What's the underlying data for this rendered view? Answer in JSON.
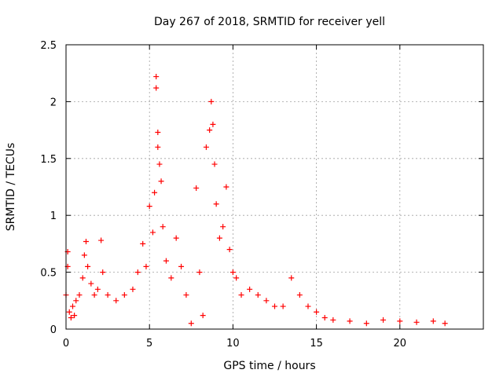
{
  "chart_data": {
    "type": "scatter",
    "title": "Day 267 of 2018, SRMTID for receiver yell",
    "xlabel": "GPS time / hours",
    "ylabel": "SRMTID / TECUs",
    "xlim": [
      0,
      25
    ],
    "ylim": [
      0,
      2.5
    ],
    "grid": true,
    "x_ticks": [
      0,
      5,
      10,
      15,
      20
    ],
    "x_tick_labels": [
      "0",
      "5",
      "10",
      "15",
      "20"
    ],
    "y_ticks": [
      0,
      0.5,
      1,
      1.5,
      2,
      2.5
    ],
    "y_tick_labels": [
      "0",
      "0.5",
      "1",
      "1.5",
      "2",
      "2.5"
    ],
    "marker": "+",
    "series": [
      {
        "name": "SRMTID",
        "color": "#ff0000",
        "sample_points": [
          [
            0.0,
            0.3
          ],
          [
            0.1,
            0.68
          ],
          [
            0.1,
            0.55
          ],
          [
            0.2,
            0.15
          ],
          [
            0.3,
            0.1
          ],
          [
            0.4,
            0.2
          ],
          [
            0.5,
            0.12
          ],
          [
            0.6,
            0.25
          ],
          [
            0.8,
            0.3
          ],
          [
            1.0,
            0.45
          ],
          [
            1.1,
            0.65
          ],
          [
            1.2,
            0.77
          ],
          [
            1.3,
            0.55
          ],
          [
            1.5,
            0.4
          ],
          [
            1.7,
            0.3
          ],
          [
            1.9,
            0.35
          ],
          [
            2.1,
            0.78
          ],
          [
            2.2,
            0.5
          ],
          [
            2.5,
            0.3
          ],
          [
            3.0,
            0.25
          ],
          [
            3.5,
            0.3
          ],
          [
            4.0,
            0.35
          ],
          [
            4.3,
            0.5
          ],
          [
            4.6,
            0.75
          ],
          [
            4.8,
            0.55
          ],
          [
            5.0,
            1.08
          ],
          [
            5.2,
            0.85
          ],
          [
            5.3,
            1.2
          ],
          [
            5.4,
            2.22
          ],
          [
            5.4,
            2.12
          ],
          [
            5.5,
            1.73
          ],
          [
            5.5,
            1.6
          ],
          [
            5.6,
            1.45
          ],
          [
            5.7,
            1.3
          ],
          [
            5.8,
            0.9
          ],
          [
            6.0,
            0.6
          ],
          [
            6.3,
            0.45
          ],
          [
            6.6,
            0.8
          ],
          [
            6.9,
            0.55
          ],
          [
            7.2,
            0.3
          ],
          [
            7.5,
            0.05
          ],
          [
            7.8,
            1.24
          ],
          [
            8.0,
            0.5
          ],
          [
            8.2,
            0.12
          ],
          [
            8.4,
            1.6
          ],
          [
            8.6,
            1.75
          ],
          [
            8.7,
            2.0
          ],
          [
            8.8,
            1.8
          ],
          [
            8.9,
            1.45
          ],
          [
            9.0,
            1.1
          ],
          [
            9.2,
            0.8
          ],
          [
            9.4,
            0.9
          ],
          [
            9.6,
            1.25
          ],
          [
            9.8,
            0.7
          ],
          [
            10.0,
            0.5
          ],
          [
            10.2,
            0.45
          ],
          [
            10.5,
            0.3
          ],
          [
            11.0,
            0.35
          ],
          [
            11.5,
            0.3
          ],
          [
            12.0,
            0.25
          ],
          [
            12.5,
            0.2
          ],
          [
            13.0,
            0.2
          ],
          [
            13.5,
            0.45
          ],
          [
            14.0,
            0.3
          ],
          [
            14.5,
            0.2
          ],
          [
            15.0,
            0.15
          ],
          [
            15.5,
            0.1
          ],
          [
            16.0,
            0.08
          ],
          [
            17.0,
            0.07
          ],
          [
            18.0,
            0.05
          ],
          [
            19.0,
            0.08
          ],
          [
            20.0,
            0.07
          ],
          [
            21.0,
            0.06
          ],
          [
            22.0,
            0.07
          ],
          [
            22.7,
            0.05
          ]
        ]
      }
    ]
  }
}
